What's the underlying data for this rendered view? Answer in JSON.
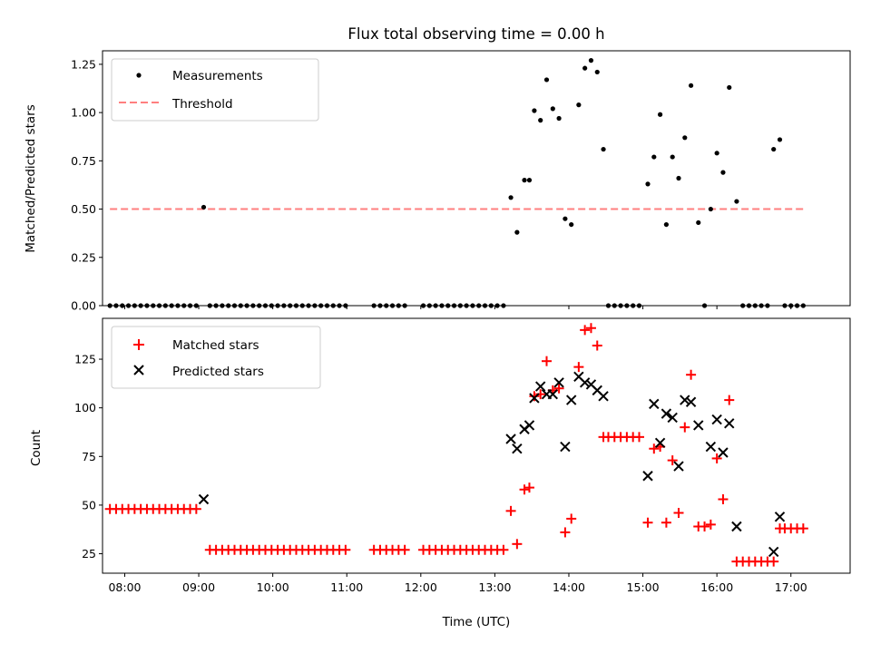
{
  "chart_data": [
    {
      "type": "scatter",
      "title": "Flux total observing time = 0.00 h",
      "ylabel": "Matched/Predicted stars",
      "xlabel": "",
      "xlim": [
        "07:42",
        "17:48"
      ],
      "ylim": [
        0,
        1.32
      ],
      "yticks": [
        "0.00",
        "0.25",
        "0.50",
        "0.75",
        "1.00",
        "1.25"
      ],
      "xticks": [
        "08:00",
        "09:00",
        "10:00",
        "11:00",
        "12:00",
        "13:00",
        "14:00",
        "15:00",
        "16:00",
        "17:00"
      ],
      "legend_position": "top-left",
      "threshold": {
        "name": "Threshold",
        "value": 0.5,
        "x_start": "07:48",
        "x_end": "17:12",
        "color": "#ff7f7f"
      },
      "series": [
        {
          "name": "Measurements",
          "marker": "dot",
          "color": "#000000",
          "points": [
            [
              "07:48",
              0
            ],
            [
              "07:53",
              0
            ],
            [
              "07:58",
              0
            ],
            [
              "08:03",
              0
            ],
            [
              "08:08",
              0
            ],
            [
              "08:13",
              0
            ],
            [
              "08:18",
              0
            ],
            [
              "08:23",
              0
            ],
            [
              "08:28",
              0
            ],
            [
              "08:33",
              0
            ],
            [
              "08:38",
              0
            ],
            [
              "08:43",
              0
            ],
            [
              "08:48",
              0
            ],
            [
              "08:53",
              0
            ],
            [
              "08:58",
              0
            ],
            [
              "09:04",
              0.51
            ],
            [
              "09:09",
              0
            ],
            [
              "09:14",
              0
            ],
            [
              "09:19",
              0
            ],
            [
              "09:24",
              0
            ],
            [
              "09:29",
              0
            ],
            [
              "09:34",
              0
            ],
            [
              "09:39",
              0
            ],
            [
              "09:44",
              0
            ],
            [
              "09:49",
              0
            ],
            [
              "09:54",
              0
            ],
            [
              "09:59",
              0
            ],
            [
              "10:04",
              0
            ],
            [
              "10:09",
              0
            ],
            [
              "10:14",
              0
            ],
            [
              "10:19",
              0
            ],
            [
              "10:24",
              0
            ],
            [
              "10:29",
              0
            ],
            [
              "10:34",
              0
            ],
            [
              "10:39",
              0
            ],
            [
              "10:44",
              0
            ],
            [
              "10:49",
              0
            ],
            [
              "10:54",
              0
            ],
            [
              "10:59",
              0
            ],
            [
              "11:22",
              0
            ],
            [
              "11:27",
              0
            ],
            [
              "11:32",
              0
            ],
            [
              "11:37",
              0
            ],
            [
              "11:42",
              0
            ],
            [
              "11:47",
              0
            ],
            [
              "12:02",
              0
            ],
            [
              "12:07",
              0
            ],
            [
              "12:12",
              0
            ],
            [
              "12:17",
              0
            ],
            [
              "12:22",
              0
            ],
            [
              "12:27",
              0
            ],
            [
              "12:32",
              0
            ],
            [
              "12:37",
              0
            ],
            [
              "12:42",
              0
            ],
            [
              "12:47",
              0
            ],
            [
              "12:52",
              0
            ],
            [
              "12:57",
              0
            ],
            [
              "13:02",
              0
            ],
            [
              "13:07",
              0
            ],
            [
              "13:13",
              0.56
            ],
            [
              "13:18",
              0.38
            ],
            [
              "13:24",
              0.65
            ],
            [
              "13:28",
              0.65
            ],
            [
              "13:32",
              1.01
            ],
            [
              "13:37",
              0.96
            ],
            [
              "13:42",
              1.17
            ],
            [
              "13:47",
              1.02
            ],
            [
              "13:52",
              0.97
            ],
            [
              "13:57",
              0.45
            ],
            [
              "14:02",
              0.42
            ],
            [
              "14:08",
              1.04
            ],
            [
              "14:13",
              1.23
            ],
            [
              "14:18",
              1.27
            ],
            [
              "14:23",
              1.21
            ],
            [
              "14:28",
              0.81
            ],
            [
              "14:32",
              0
            ],
            [
              "14:37",
              0
            ],
            [
              "14:42",
              0
            ],
            [
              "14:47",
              0
            ],
            [
              "14:52",
              0
            ],
            [
              "14:57",
              0
            ],
            [
              "15:04",
              0.63
            ],
            [
              "15:09",
              0.77
            ],
            [
              "15:14",
              0.99
            ],
            [
              "15:19",
              0.42
            ],
            [
              "15:24",
              0.77
            ],
            [
              "15:29",
              0.66
            ],
            [
              "15:34",
              0.87
            ],
            [
              "15:39",
              1.14
            ],
            [
              "15:45",
              0.43
            ],
            [
              "15:50",
              0
            ],
            [
              "15:55",
              0.5
            ],
            [
              "16:00",
              0.79
            ],
            [
              "16:05",
              0.69
            ],
            [
              "16:10",
              1.13
            ],
            [
              "16:16",
              0.54
            ],
            [
              "16:21",
              0
            ],
            [
              "16:26",
              0
            ],
            [
              "16:31",
              0
            ],
            [
              "16:36",
              0
            ],
            [
              "16:41",
              0
            ],
            [
              "16:46",
              0.81
            ],
            [
              "16:51",
              0.86
            ],
            [
              "16:55",
              0
            ],
            [
              "17:00",
              0
            ],
            [
              "17:05",
              0
            ],
            [
              "17:10",
              0
            ]
          ]
        }
      ]
    },
    {
      "type": "scatter",
      "title": "",
      "ylabel": "Count",
      "xlabel": "Time (UTC)",
      "xlim": [
        "07:42",
        "17:48"
      ],
      "ylim": [
        15,
        146
      ],
      "yticks": [
        "25",
        "50",
        "75",
        "100",
        "125"
      ],
      "xticks": [
        "08:00",
        "09:00",
        "10:00",
        "11:00",
        "12:00",
        "13:00",
        "14:00",
        "15:00",
        "16:00",
        "17:00"
      ],
      "legend_position": "top-left",
      "series": [
        {
          "name": "Matched stars",
          "marker": "plus",
          "color": "#ff0000",
          "points": [
            [
              "07:48",
              48
            ],
            [
              "07:53",
              48
            ],
            [
              "07:58",
              48
            ],
            [
              "08:03",
              48
            ],
            [
              "08:08",
              48
            ],
            [
              "08:13",
              48
            ],
            [
              "08:18",
              48
            ],
            [
              "08:23",
              48
            ],
            [
              "08:28",
              48
            ],
            [
              "08:33",
              48
            ],
            [
              "08:38",
              48
            ],
            [
              "08:43",
              48
            ],
            [
              "08:48",
              48
            ],
            [
              "08:53",
              48
            ],
            [
              "08:58",
              48
            ],
            [
              "09:09",
              27
            ],
            [
              "09:14",
              27
            ],
            [
              "09:19",
              27
            ],
            [
              "09:24",
              27
            ],
            [
              "09:29",
              27
            ],
            [
              "09:34",
              27
            ],
            [
              "09:39",
              27
            ],
            [
              "09:44",
              27
            ],
            [
              "09:49",
              27
            ],
            [
              "09:54",
              27
            ],
            [
              "09:59",
              27
            ],
            [
              "10:04",
              27
            ],
            [
              "10:09",
              27
            ],
            [
              "10:14",
              27
            ],
            [
              "10:19",
              27
            ],
            [
              "10:24",
              27
            ],
            [
              "10:29",
              27
            ],
            [
              "10:34",
              27
            ],
            [
              "10:39",
              27
            ],
            [
              "10:44",
              27
            ],
            [
              "10:49",
              27
            ],
            [
              "10:54",
              27
            ],
            [
              "10:59",
              27
            ],
            [
              "11:22",
              27
            ],
            [
              "11:27",
              27
            ],
            [
              "11:32",
              27
            ],
            [
              "11:37",
              27
            ],
            [
              "11:42",
              27
            ],
            [
              "11:47",
              27
            ],
            [
              "12:02",
              27
            ],
            [
              "12:07",
              27
            ],
            [
              "12:12",
              27
            ],
            [
              "12:17",
              27
            ],
            [
              "12:22",
              27
            ],
            [
              "12:27",
              27
            ],
            [
              "12:32",
              27
            ],
            [
              "12:37",
              27
            ],
            [
              "12:42",
              27
            ],
            [
              "12:47",
              27
            ],
            [
              "12:52",
              27
            ],
            [
              "12:57",
              27
            ],
            [
              "13:02",
              27
            ],
            [
              "13:07",
              27
            ],
            [
              "13:13",
              47
            ],
            [
              "13:18",
              30
            ],
            [
              "13:24",
              58
            ],
            [
              "13:28",
              59
            ],
            [
              "13:32",
              106
            ],
            [
              "13:37",
              107
            ],
            [
              "13:42",
              124
            ],
            [
              "13:47",
              109
            ],
            [
              "13:52",
              110
            ],
            [
              "13:57",
              36
            ],
            [
              "14:02",
              43
            ],
            [
              "14:08",
              121
            ],
            [
              "14:13",
              140
            ],
            [
              "14:18",
              141
            ],
            [
              "14:23",
              132
            ],
            [
              "14:28",
              85
            ],
            [
              "14:32",
              85
            ],
            [
              "14:37",
              85
            ],
            [
              "14:42",
              85
            ],
            [
              "14:47",
              85
            ],
            [
              "14:52",
              85
            ],
            [
              "14:57",
              85
            ],
            [
              "15:04",
              41
            ],
            [
              "15:09",
              79
            ],
            [
              "15:14",
              80
            ],
            [
              "15:19",
              41
            ],
            [
              "15:24",
              73
            ],
            [
              "15:29",
              46
            ],
            [
              "15:34",
              90
            ],
            [
              "15:39",
              117
            ],
            [
              "15:45",
              39
            ],
            [
              "15:50",
              39
            ],
            [
              "15:55",
              40
            ],
            [
              "16:00",
              74
            ],
            [
              "16:05",
              53
            ],
            [
              "16:10",
              104
            ],
            [
              "16:16",
              21
            ],
            [
              "16:21",
              21
            ],
            [
              "16:26",
              21
            ],
            [
              "16:31",
              21
            ],
            [
              "16:36",
              21
            ],
            [
              "16:41",
              21
            ],
            [
              "16:46",
              21
            ],
            [
              "16:51",
              38
            ],
            [
              "16:55",
              38
            ],
            [
              "17:00",
              38
            ],
            [
              "17:05",
              38
            ],
            [
              "17:10",
              38
            ]
          ]
        },
        {
          "name": "Predicted stars",
          "marker": "x",
          "color": "#000000",
          "points": [
            [
              "09:04",
              53
            ],
            [
              "13:13",
              84
            ],
            [
              "13:18",
              79
            ],
            [
              "13:24",
              89
            ],
            [
              "13:28",
              91
            ],
            [
              "13:32",
              105
            ],
            [
              "13:37",
              111
            ],
            [
              "13:42",
              107
            ],
            [
              "13:47",
              107
            ],
            [
              "13:52",
              113
            ],
            [
              "13:57",
              80
            ],
            [
              "14:02",
              104
            ],
            [
              "14:08",
              116
            ],
            [
              "14:13",
              113
            ],
            [
              "14:18",
              112
            ],
            [
              "14:23",
              109
            ],
            [
              "14:28",
              106
            ],
            [
              "15:04",
              65
            ],
            [
              "15:09",
              102
            ],
            [
              "15:14",
              82
            ],
            [
              "15:19",
              97
            ],
            [
              "15:24",
              95
            ],
            [
              "15:29",
              70
            ],
            [
              "15:34",
              104
            ],
            [
              "15:39",
              103
            ],
            [
              "15:45",
              91
            ],
            [
              "15:55",
              80
            ],
            [
              "16:00",
              94
            ],
            [
              "16:05",
              77
            ],
            [
              "16:10",
              92
            ],
            [
              "16:16",
              39
            ],
            [
              "16:46",
              26
            ],
            [
              "16:51",
              44
            ]
          ]
        }
      ]
    }
  ]
}
